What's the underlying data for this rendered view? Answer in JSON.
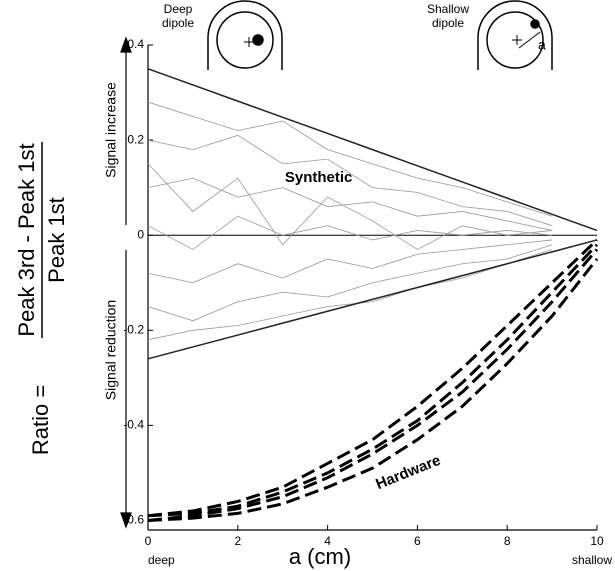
{
  "chart_data": {
    "type": "line",
    "y_label": {
      "prefix": "Ratio =",
      "numerator": "Peak 3rd - Peak 1st",
      "denominator": "Peak 1st"
    },
    "x_label": "a (cm)",
    "x_end_labels": [
      "deep",
      "shallow"
    ],
    "y_direction_labels": [
      "Signal increase",
      "Signal reduction"
    ],
    "annotations": [
      "Synthetic",
      "Hardware"
    ],
    "insets": [
      {
        "label": [
          "Deep",
          "dipole"
        ]
      },
      {
        "label": [
          "Shallow",
          "dipole"
        ],
        "marker": "a"
      }
    ],
    "x": [
      0,
      1,
      2,
      3,
      4,
      5,
      6,
      7,
      8,
      9,
      10
    ],
    "xlim": [
      0,
      10
    ],
    "xticks": [
      0,
      2,
      4,
      6,
      8,
      10
    ],
    "ylim": [
      -0.62,
      0.4
    ],
    "yticks": [
      -0.6,
      -0.4,
      -0.2,
      0,
      0.2,
      0.4
    ],
    "series": [
      {
        "color": "#999999",
        "width": 0.8,
        "dash": false,
        "values": [
          0.28,
          0.25,
          0.22,
          0.24,
          0.18,
          0.15,
          0.12,
          0.1,
          0.07,
          0.04,
          null
        ]
      },
      {
        "color": "#999999",
        "width": 0.8,
        "dash": false,
        "values": [
          0.2,
          0.18,
          0.21,
          0.15,
          0.16,
          0.1,
          0.09,
          0.06,
          0.05,
          0.02,
          null
        ]
      },
      {
        "color": "#999999",
        "width": 0.8,
        "dash": false,
        "values": [
          0.1,
          0.12,
          0.08,
          0.1,
          0.06,
          0.07,
          0.04,
          0.05,
          0.03,
          0.01,
          null
        ]
      },
      {
        "color": "#999999",
        "width": 0.8,
        "dash": false,
        "values": [
          0.02,
          -0.03,
          0.04,
          0.0,
          0.02,
          -0.01,
          0.01,
          0.0,
          0.01,
          0.0,
          null
        ]
      },
      {
        "color": "#999999",
        "width": 0.8,
        "dash": false,
        "values": [
          -0.08,
          -0.1,
          -0.06,
          -0.09,
          -0.05,
          -0.07,
          -0.04,
          -0.03,
          -0.02,
          -0.01,
          null
        ]
      },
      {
        "color": "#999999",
        "width": 0.8,
        "dash": false,
        "values": [
          -0.15,
          -0.18,
          -0.14,
          -0.12,
          -0.13,
          -0.1,
          -0.08,
          -0.06,
          -0.05,
          -0.02,
          null
        ]
      },
      {
        "color": "#999999",
        "width": 0.8,
        "dash": false,
        "values": [
          -0.22,
          -0.2,
          -0.19,
          -0.17,
          -0.15,
          -0.14,
          -0.11,
          -0.09,
          -0.06,
          -0.03,
          null
        ]
      },
      {
        "color": "#999999",
        "width": 0.8,
        "dash": false,
        "values": [
          0.15,
          0.05,
          0.12,
          -0.02,
          0.08,
          0.03,
          -0.03,
          0.02,
          0.0,
          0.01,
          null
        ]
      },
      {
        "color": "#222222",
        "width": 1.5,
        "dash": false,
        "values": [
          0.35,
          0.316,
          0.282,
          0.248,
          0.214,
          0.18,
          0.146,
          0.112,
          0.078,
          0.044,
          0.01
        ]
      },
      {
        "color": "#222222",
        "width": 1.5,
        "dash": false,
        "values": [
          -0.26,
          -0.235,
          -0.21,
          -0.185,
          -0.16,
          -0.135,
          -0.11,
          -0.085,
          -0.06,
          -0.035,
          -0.01
        ]
      },
      {
        "color": "#000000",
        "width": 3,
        "dash": true,
        "values": [
          -0.59,
          -0.585,
          -0.57,
          -0.54,
          -0.5,
          -0.45,
          -0.39,
          -0.31,
          -0.22,
          -0.12,
          -0.02
        ]
      },
      {
        "color": "#000000",
        "width": 3,
        "dash": true,
        "values": [
          -0.6,
          -0.59,
          -0.575,
          -0.55,
          -0.51,
          -0.46,
          -0.4,
          -0.33,
          -0.24,
          -0.14,
          -0.03
        ]
      },
      {
        "color": "#000000",
        "width": 3,
        "dash": true,
        "values": [
          -0.59,
          -0.58,
          -0.56,
          -0.53,
          -0.48,
          -0.43,
          -0.36,
          -0.28,
          -0.19,
          -0.1,
          -0.01
        ]
      },
      {
        "color": "#000000",
        "width": 3,
        "dash": true,
        "values": [
          -0.6,
          -0.595,
          -0.585,
          -0.565,
          -0.53,
          -0.49,
          -0.43,
          -0.36,
          -0.27,
          -0.17,
          -0.05
        ]
      }
    ]
  }
}
